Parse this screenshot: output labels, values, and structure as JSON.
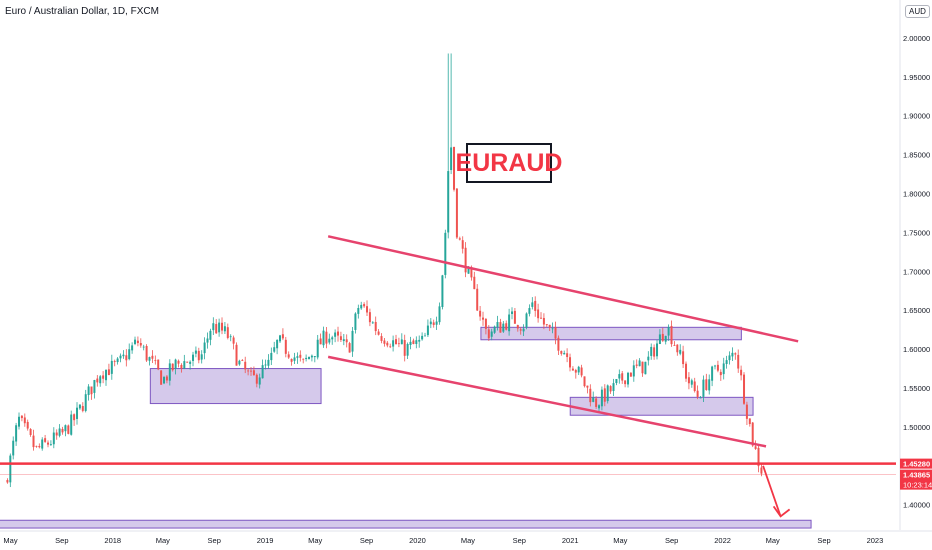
{
  "header": {
    "symbol_title": "Euro / Australian Dollar, 1D, FXCM",
    "currency": "AUD"
  },
  "annotation": {
    "label": "EURAUD"
  },
  "price_badges": {
    "level": "1.45280",
    "last": "1.43865",
    "countdown": "10:23:14"
  },
  "colors": {
    "up": "#26a69a",
    "down": "#ef5350",
    "trend_line": "#e6436d",
    "support_line": "#f23645",
    "zone_fill": "#b39ddb",
    "zone_border": "#7e57c2",
    "last_price": "#f23645",
    "axis_text": "#131722"
  },
  "chart_data": {
    "type": "candlestick",
    "y_axis": {
      "ticks": [
        "2.00000",
        "1.95000",
        "1.90000",
        "1.85000",
        "1.80000",
        "1.75000",
        "1.70000",
        "1.65000",
        "1.60000",
        "1.55000",
        "1.50000",
        "1.40000"
      ],
      "range": [
        1.37,
        2.03
      ],
      "position": "right"
    },
    "x_axis": {
      "ticks": [
        "May",
        "Sep",
        "2018",
        "May",
        "Sep",
        "2019",
        "May",
        "Sep",
        "2020",
        "May",
        "Sep",
        "2021",
        "May",
        "Sep",
        "2022",
        "May",
        "Sep",
        "2023"
      ]
    },
    "price_path": [
      [
        "2017-04-20",
        1.43
      ],
      [
        "2017-05-20",
        1.51
      ],
      [
        "2017-07-01",
        1.47
      ],
      [
        "2017-09-01",
        1.49
      ],
      [
        "2017-10-01",
        1.51
      ],
      [
        "2017-12-01",
        1.57
      ],
      [
        "2018-01-15",
        1.58
      ],
      [
        "2018-03-01",
        1.61
      ],
      [
        "2018-05-01",
        1.56
      ],
      [
        "2018-06-01",
        1.58
      ],
      [
        "2018-08-01",
        1.59
      ],
      [
        "2018-08-25",
        1.63
      ],
      [
        "2018-10-01",
        1.62
      ],
      [
        "2018-11-01",
        1.58
      ],
      [
        "2018-12-01",
        1.56
      ],
      [
        "2019-01-10",
        1.58
      ],
      [
        "2019-02-01",
        1.61
      ],
      [
        "2019-04-01",
        1.58
      ],
      [
        "2019-05-01",
        1.6
      ],
      [
        "2019-06-01",
        1.62
      ],
      [
        "2019-07-20",
        1.6
      ],
      [
        "2019-08-15",
        1.66
      ],
      [
        "2019-10-01",
        1.62
      ],
      [
        "2019-12-01",
        1.6
      ],
      [
        "2020-01-15",
        1.61
      ],
      [
        "2020-02-20",
        1.65
      ],
      [
        "2020-03-05",
        1.72
      ],
      [
        "2020-03-19",
        1.88
      ],
      [
        "2020-04-05",
        1.75
      ],
      [
        "2020-05-10",
        1.68
      ],
      [
        "2020-06-15",
        1.62
      ],
      [
        "2020-07-20",
        1.63
      ],
      [
        "2020-08-15",
        1.64
      ],
      [
        "2020-09-10",
        1.63
      ],
      [
        "2020-10-01",
        1.66
      ],
      [
        "2020-11-01",
        1.63
      ],
      [
        "2020-12-15",
        1.6
      ],
      [
        "2021-01-20",
        1.57
      ],
      [
        "2021-03-01",
        1.53
      ],
      [
        "2021-04-15",
        1.55
      ],
      [
        "2021-05-20",
        1.57
      ],
      [
        "2021-07-01",
        1.58
      ],
      [
        "2021-08-20",
        1.63
      ],
      [
        "2021-09-15",
        1.6
      ],
      [
        "2021-10-10",
        1.56
      ],
      [
        "2021-11-01",
        1.54
      ],
      [
        "2021-12-10",
        1.57
      ],
      [
        "2022-01-10",
        1.58
      ],
      [
        "2022-02-01",
        1.6
      ],
      [
        "2022-02-25",
        1.53
      ],
      [
        "2022-03-15",
        1.48
      ],
      [
        "2022-03-31",
        1.45
      ],
      [
        "2022-04-08",
        1.44
      ]
    ],
    "spike_high": [
      "2020-03-18",
      1.98
    ],
    "trendlines": [
      {
        "name": "upper",
        "from": [
          "2019-06-01",
          1.745
        ],
        "to": [
          "2022-07-01",
          1.61
        ]
      },
      {
        "name": "lower",
        "from": [
          "2019-06-01",
          1.59
        ],
        "to": [
          "2022-04-15",
          1.475
        ]
      }
    ],
    "horizontal_line": 1.4528,
    "last_price": 1.43865,
    "zones": [
      {
        "from": "2018-04-01",
        "to": "2019-05-15",
        "low": 1.53,
        "high": 1.575
      },
      {
        "from": "2020-06-01",
        "to": "2022-02-15",
        "low": 1.612,
        "high": 1.628
      },
      {
        "from": "2021-01-01",
        "to": "2022-03-15",
        "low": 1.515,
        "high": 1.538
      },
      {
        "from": "2017-03-01",
        "to": "2022-08-01",
        "low": 1.37,
        "high": 1.38
      }
    ],
    "projection": {
      "from": [
        "2022-04-08",
        1.45
      ],
      "to": [
        "2022-05-20",
        1.385
      ]
    }
  }
}
